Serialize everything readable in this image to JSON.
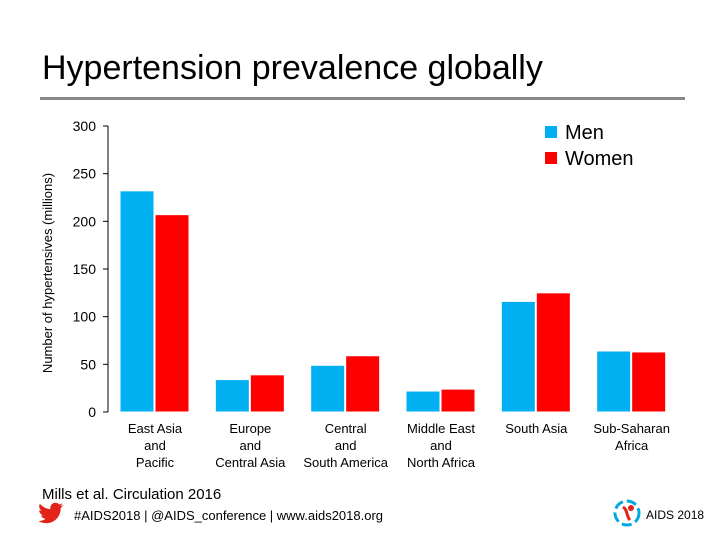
{
  "title": "Hypertension prevalence globally",
  "source": "Mills et al. Circulation 2016",
  "footer": {
    "text": "#AIDS2018 | @AIDS_conference | www.aids2018.org",
    "logo_text": "AIDS 2018"
  },
  "colors": {
    "men": "#00b0f0",
    "women": "#ff0000",
    "rule": "#888888"
  },
  "icons": {
    "footer": "twitter-bird-icon",
    "logo": "aids2018-logo-icon"
  },
  "chart_data": {
    "type": "bar",
    "title": "",
    "ylabel": "Number of hypertensives (millions)",
    "xlabel": "",
    "ylim": [
      0,
      300
    ],
    "yticks": [
      0,
      50,
      100,
      150,
      200,
      250,
      300
    ],
    "grid": false,
    "legend": "top-right",
    "categories": [
      [
        "East Asia",
        "and",
        "Pacific"
      ],
      [
        "Europe",
        "and",
        "Central Asia"
      ],
      [
        "Central",
        "and",
        "South America"
      ],
      [
        "Middle East",
        "and",
        "North Africa"
      ],
      [
        "South Asia"
      ],
      [
        "Sub-Saharan",
        "Africa"
      ]
    ],
    "series": [
      {
        "name": "Men",
        "color": "#00b0f0",
        "values": [
          232,
          34,
          49,
          22,
          116,
          64
        ]
      },
      {
        "name": "Women",
        "color": "#ff0000",
        "values": [
          207,
          39,
          59,
          24,
          125,
          63
        ]
      }
    ]
  }
}
